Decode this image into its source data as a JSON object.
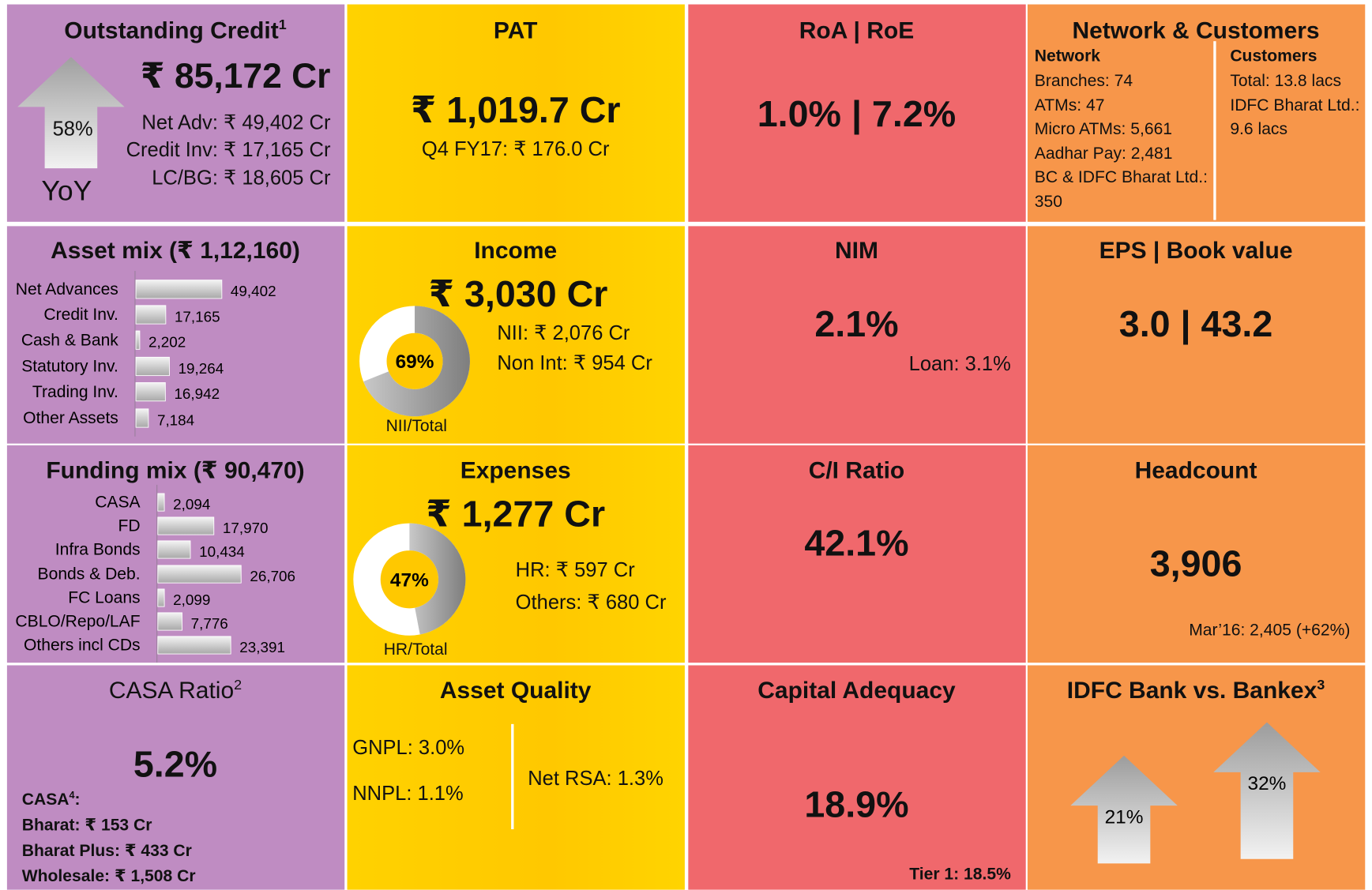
{
  "outstanding_credit": {
    "title": "Outstanding Credit",
    "note": "1",
    "total": "₹ 85,172 Cr",
    "growth": "58%",
    "growth_label": "YoY",
    "lines": [
      "Net Adv: ₹ 49,402 Cr",
      "Credit Inv: ₹ 17,165 Cr",
      "LC/BG: ₹ 18,605 Cr"
    ]
  },
  "pat": {
    "title": "PAT",
    "value": "₹ 1,019.7 Cr",
    "sub": "Q4 FY17: ₹ 176.0 Cr"
  },
  "roa_roe": {
    "title": "RoA | RoE",
    "value": "1.0% | 7.2%"
  },
  "network": {
    "title": "Network & Customers",
    "network_heading": "Network",
    "network_lines": [
      "Branches: 74",
      "ATMs: 47",
      "Micro ATMs: 5,661",
      "Aadhar Pay: 2,481",
      "BC & IDFC Bharat Ltd.: 350"
    ],
    "customers_heading": "Customers",
    "customers_lines": [
      "Total: 13.8 lacs",
      "IDFC Bharat Ltd.: 9.6 lacs"
    ]
  },
  "asset_mix": {
    "title": "Asset mix (₹ 1,12,160)",
    "items": [
      {
        "label": "Net Advances",
        "value": 49402,
        "value_label": "49,402"
      },
      {
        "label": "Credit Inv.",
        "value": 17165,
        "value_label": "17,165"
      },
      {
        "label": "Cash & Bank",
        "value": 2202,
        "value_label": "2,202"
      },
      {
        "label": "Statutory Inv.",
        "value": 19264,
        "value_label": "19,264"
      },
      {
        "label": "Trading Inv.",
        "value": 16942,
        "value_label": "16,942"
      },
      {
        "label": "Other Assets",
        "value": 7184,
        "value_label": "7,184"
      }
    ]
  },
  "income": {
    "title": "Income",
    "value": "₹ 3,030 Cr",
    "lines": [
      "NII: ₹ 2,076 Cr",
      "Non Int: ₹ 954 Cr"
    ],
    "donut": {
      "value": 69,
      "label": "69%",
      "caption": "NII/Total"
    }
  },
  "nim": {
    "title": "NIM",
    "value": "2.1%",
    "sub": "Loan: 3.1%"
  },
  "eps": {
    "title": "EPS | Book value",
    "value": "3.0 | 43.2"
  },
  "funding_mix": {
    "title": "Funding mix (₹ 90,470)",
    "items": [
      {
        "label": "CASA",
        "value": 2094,
        "value_label": "2,094"
      },
      {
        "label": "FD",
        "value": 17970,
        "value_label": "17,970"
      },
      {
        "label": "Infra Bonds",
        "value": 10434,
        "value_label": "10,434"
      },
      {
        "label": "Bonds & Deb.",
        "value": 26706,
        "value_label": "26,706"
      },
      {
        "label": "FC Loans",
        "value": 2099,
        "value_label": "2,099"
      },
      {
        "label": "CBLO/Repo/LAF",
        "value": 7776,
        "value_label": "7,776"
      },
      {
        "label": "Others incl CDs",
        "value": 23391,
        "value_label": "23,391"
      }
    ]
  },
  "expenses": {
    "title": "Expenses",
    "value": "₹ 1,277 Cr",
    "lines": [
      "HR: ₹ 597 Cr",
      "Others: ₹ 680 Cr"
    ],
    "donut": {
      "value": 47,
      "label": "47%",
      "caption": "HR/Total"
    }
  },
  "ci_ratio": {
    "title": "C/I Ratio",
    "value": "42.1%"
  },
  "headcount": {
    "title": "Headcount",
    "value": "3,906",
    "sub": "Mar’16: 2,405 (+62%)"
  },
  "casa": {
    "title": "CASA Ratio",
    "note": "2",
    "value": "5.2%",
    "heading": "CASA",
    "heading_note": "4",
    "heading_end": ":",
    "lines": [
      "Bharat: ₹ 153 Cr",
      "Bharat Plus: ₹ 433 Cr",
      "Wholesale: ₹ 1,508 Cr"
    ]
  },
  "asset_quality": {
    "title": "Asset Quality",
    "left": [
      "GNPL: 3.0%",
      "NNPL: 1.1%"
    ],
    "right": "Net RSA: 1.3%"
  },
  "capital": {
    "title": "Capital Adequacy",
    "value": "18.9%",
    "sub": "Tier 1: 18.5%"
  },
  "bankex": {
    "title": "IDFC Bank vs. Bankex",
    "note": "3",
    "arrows": [
      {
        "value": 21,
        "label": "21%"
      },
      {
        "value": 32,
        "label": "32%"
      }
    ]
  }
}
